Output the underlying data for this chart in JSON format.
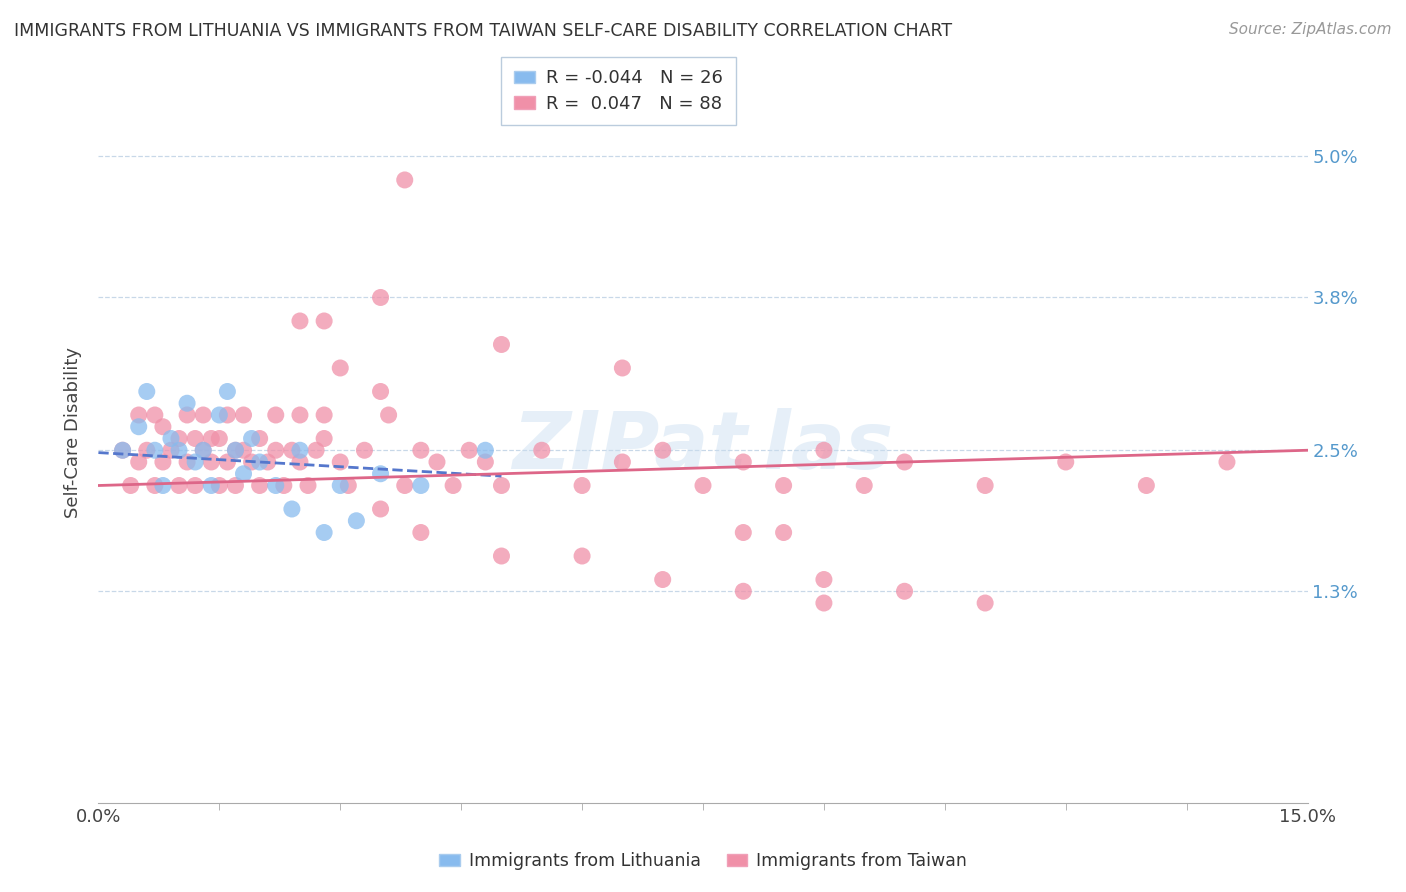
{
  "title": "IMMIGRANTS FROM LITHUANIA VS IMMIGRANTS FROM TAIWAN SELF-CARE DISABILITY CORRELATION CHART",
  "source": "Source: ZipAtlas.com",
  "ylabel": "Self-Care Disability",
  "ytick_labels": [
    "5.0%",
    "3.8%",
    "2.5%",
    "1.3%"
  ],
  "ytick_positions": [
    0.05,
    0.038,
    0.025,
    0.013
  ],
  "xlim": [
    0.0,
    0.15
  ],
  "ylim": [
    -0.005,
    0.058
  ],
  "lithuania_color": "#88bbee",
  "taiwan_color": "#f090a8",
  "lithuania_line_color": "#5577cc",
  "taiwan_line_color": "#dd6688",
  "background_color": "#ffffff",
  "grid_color": "#c8d8e8",
  "lit_x": [
    0.003,
    0.005,
    0.006,
    0.007,
    0.008,
    0.009,
    0.01,
    0.011,
    0.012,
    0.013,
    0.014,
    0.015,
    0.016,
    0.017,
    0.018,
    0.019,
    0.02,
    0.022,
    0.024,
    0.025,
    0.028,
    0.03,
    0.032,
    0.035,
    0.04,
    0.048
  ],
  "lit_y": [
    0.025,
    0.027,
    0.03,
    0.025,
    0.022,
    0.026,
    0.025,
    0.029,
    0.024,
    0.025,
    0.022,
    0.028,
    0.03,
    0.025,
    0.023,
    0.026,
    0.024,
    0.022,
    0.02,
    0.025,
    0.018,
    0.022,
    0.019,
    0.023,
    0.022,
    0.025
  ],
  "tai_x": [
    0.003,
    0.004,
    0.005,
    0.005,
    0.006,
    0.007,
    0.007,
    0.008,
    0.008,
    0.009,
    0.01,
    0.01,
    0.011,
    0.011,
    0.012,
    0.012,
    0.013,
    0.013,
    0.014,
    0.014,
    0.015,
    0.015,
    0.016,
    0.016,
    0.017,
    0.017,
    0.018,
    0.018,
    0.019,
    0.02,
    0.02,
    0.021,
    0.022,
    0.022,
    0.023,
    0.024,
    0.025,
    0.025,
    0.026,
    0.027,
    0.028,
    0.028,
    0.03,
    0.031,
    0.033,
    0.035,
    0.036,
    0.038,
    0.04,
    0.042,
    0.044,
    0.046,
    0.048,
    0.05,
    0.055,
    0.06,
    0.065,
    0.07,
    0.075,
    0.08,
    0.085,
    0.09,
    0.095,
    0.1,
    0.11,
    0.12,
    0.13,
    0.14,
    0.028,
    0.038,
    0.035,
    0.03,
    0.025,
    0.05,
    0.065,
    0.08,
    0.085,
    0.09,
    0.035,
    0.04,
    0.05,
    0.06,
    0.07,
    0.08,
    0.09,
    0.1,
    0.11
  ],
  "tai_y": [
    0.025,
    0.022,
    0.028,
    0.024,
    0.025,
    0.022,
    0.028,
    0.024,
    0.027,
    0.025,
    0.022,
    0.026,
    0.024,
    0.028,
    0.022,
    0.026,
    0.025,
    0.028,
    0.024,
    0.026,
    0.022,
    0.026,
    0.024,
    0.028,
    0.025,
    0.022,
    0.025,
    0.028,
    0.024,
    0.022,
    0.026,
    0.024,
    0.025,
    0.028,
    0.022,
    0.025,
    0.024,
    0.028,
    0.022,
    0.025,
    0.026,
    0.028,
    0.024,
    0.022,
    0.025,
    0.03,
    0.028,
    0.022,
    0.025,
    0.024,
    0.022,
    0.025,
    0.024,
    0.022,
    0.025,
    0.022,
    0.024,
    0.025,
    0.022,
    0.024,
    0.022,
    0.025,
    0.022,
    0.024,
    0.022,
    0.024,
    0.022,
    0.024,
    0.036,
    0.048,
    0.038,
    0.032,
    0.036,
    0.034,
    0.032,
    0.018,
    0.018,
    0.014,
    0.02,
    0.018,
    0.016,
    0.016,
    0.014,
    0.013,
    0.012,
    0.013,
    0.012
  ],
  "lit_line_x": [
    0.0,
    0.05
  ],
  "lit_line_y": [
    0.0248,
    0.0228
  ],
  "tai_line_x": [
    0.0,
    0.15
  ],
  "tai_line_y": [
    0.022,
    0.025
  ]
}
